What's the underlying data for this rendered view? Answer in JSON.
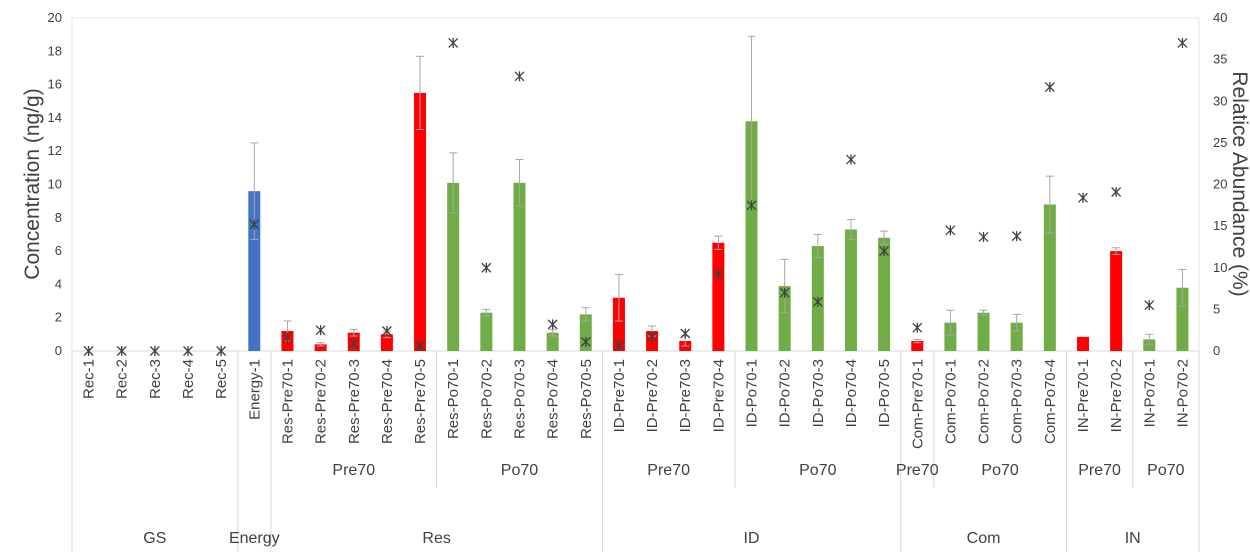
{
  "chart_data": {
    "type": "bar",
    "ylabel": "Concentration (ng/g)",
    "y2label": "Relatice Abundance (%)",
    "ylim": [
      0,
      20
    ],
    "y2lim": [
      0,
      40
    ],
    "y_ticks": [
      "0",
      "2",
      "4",
      "6",
      "8",
      "10",
      "12",
      "14",
      "16",
      "18",
      "20"
    ],
    "y2_ticks": [
      "0",
      "5",
      "10",
      "15",
      "20",
      "25",
      "30",
      "35",
      "40"
    ],
    "grid": false,
    "colors": {
      "GS": "#4472c4",
      "Energy": "#4472c4",
      "Pre70": "#ff0000",
      "Po70": "#70ad47",
      "marker": "#404040",
      "errorbar": "#a6a6a6"
    },
    "categories": [
      "Rec-1",
      "Rec-2",
      "Rec-3",
      "Rec-4",
      "Rec-5",
      "Energy-1",
      "Res-Pre70-1",
      "Res-Pre70-2",
      "Res-Pre70-3",
      "Res-Pre70-4",
      "Res-Pre70-5",
      "Res-Po70-1",
      "Res-Po70-2",
      "Res-Po70-3",
      "Res-Po70-4",
      "Res-Po70-5",
      "ID-Pre70-1",
      "ID-Pre70-2",
      "ID-Pre70-3",
      "ID-Pre70-4",
      "ID-Po70-1",
      "ID-Po70-2",
      "ID-Po70-3",
      "ID-Po70-4",
      "ID-Po70-5",
      "Com-Pre70-1",
      "Com-Po70-1",
      "Com-Po70-2",
      "Com-Po70-3",
      "Com-Po70-4",
      "IN-Pre70-1",
      "IN-Pre70-2",
      "IN-Po70-1",
      "IN-Po70-2"
    ],
    "bar_groups": [
      "GS",
      "GS",
      "GS",
      "GS",
      "GS",
      "Energy",
      "Pre70",
      "Pre70",
      "Pre70",
      "Pre70",
      "Pre70",
      "Po70",
      "Po70",
      "Po70",
      "Po70",
      "Po70",
      "Pre70",
      "Pre70",
      "Pre70",
      "Pre70",
      "Po70",
      "Po70",
      "Po70",
      "Po70",
      "Po70",
      "Pre70",
      "Po70",
      "Po70",
      "Po70",
      "Po70",
      "Pre70",
      "Pre70",
      "Po70",
      "Po70"
    ],
    "series": [
      {
        "axis": "left",
        "kind": "bar",
        "values": [
          0,
          0,
          0,
          0,
          0,
          9.6,
          1.2,
          0.4,
          1.1,
          1.0,
          15.5,
          10.1,
          2.3,
          10.1,
          1.1,
          2.2,
          3.2,
          1.2,
          0.6,
          6.5,
          13.8,
          3.9,
          6.3,
          7.3,
          6.8,
          0.6,
          1.7,
          2.3,
          1.7,
          8.8,
          0.85,
          6.0,
          0.7,
          3.8
        ],
        "error": [
          0,
          0,
          0,
          0,
          0,
          2.9,
          0.6,
          0.1,
          0.2,
          0.2,
          2.2,
          1.8,
          0.2,
          1.4,
          0.2,
          0.4,
          1.4,
          0.3,
          0.3,
          0.4,
          5.1,
          1.6,
          0.7,
          0.6,
          0.4,
          0.1,
          0.75,
          0.15,
          0.5,
          1.7,
          0,
          0.2,
          0.3,
          1.1
        ]
      },
      {
        "axis": "right",
        "kind": "marker",
        "values": [
          0,
          0,
          0,
          0,
          0,
          15.2,
          1.6,
          2.5,
          0.9,
          2.4,
          0.6,
          37,
          10,
          33,
          3.2,
          1.1,
          0.7,
          1.7,
          2.1,
          9.2,
          17.5,
          7,
          5.9,
          23,
          12,
          2.8,
          14.5,
          13.7,
          13.8,
          31.7,
          18.4,
          19.1,
          5.5,
          37
        ]
      }
    ],
    "subgroups": [
      {
        "label": "Pre70",
        "start": 6,
        "end": 10
      },
      {
        "label": "Po70",
        "start": 11,
        "end": 15
      },
      {
        "label": "Pre70",
        "start": 16,
        "end": 19
      },
      {
        "label": "Po70",
        "start": 20,
        "end": 24
      },
      {
        "label": "Pre70",
        "start": 25,
        "end": 25
      },
      {
        "label": "Po70",
        "start": 26,
        "end": 29
      },
      {
        "label": "Pre70",
        "start": 30,
        "end": 31
      },
      {
        "label": "Po70",
        "start": 32,
        "end": 33
      }
    ],
    "groups": [
      {
        "label": "GS",
        "start": 0,
        "end": 4
      },
      {
        "label": "Energy",
        "start": 5,
        "end": 5
      },
      {
        "label": "Res",
        "start": 6,
        "end": 15
      },
      {
        "label": "ID",
        "start": 16,
        "end": 24
      },
      {
        "label": "Com",
        "start": 25,
        "end": 29
      },
      {
        "label": "IN",
        "start": 30,
        "end": 33
      }
    ]
  }
}
